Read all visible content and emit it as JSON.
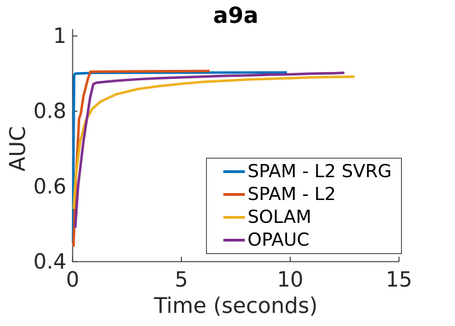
{
  "chart_data": {
    "type": "line",
    "title": "a9a",
    "xlabel": "Time (seconds)",
    "ylabel": "AUC",
    "xlim": [
      0,
      15
    ],
    "ylim": [
      0.4,
      1.0
    ],
    "x_ticks": [
      0,
      5,
      10,
      15
    ],
    "x_tick_labels": [
      "0",
      "5",
      "10",
      "15"
    ],
    "y_ticks": [
      1.0,
      0.8,
      0.6,
      0.4
    ],
    "y_tick_labels": [
      "1",
      "0.8",
      "0.6",
      "0.4"
    ],
    "grid": false,
    "legend_position": "inside-right-center",
    "axis_color": "#262626",
    "background_color": "#ffffff",
    "series": [
      {
        "name": "SPAM - L2 SVRG",
        "color": "#0072BD",
        "points": [
          [
            0.02,
            0.45
          ],
          [
            0.04,
            0.7
          ],
          [
            0.07,
            0.895
          ],
          [
            0.12,
            0.9
          ],
          [
            1.0,
            0.902
          ],
          [
            9.85,
            0.903
          ]
        ]
      },
      {
        "name": "SPAM - L2",
        "color": "#D95319",
        "points": [
          [
            0.04,
            0.44
          ],
          [
            0.15,
            0.62
          ],
          [
            0.3,
            0.78
          ],
          [
            0.38,
            0.795
          ],
          [
            0.5,
            0.84
          ],
          [
            0.7,
            0.885
          ],
          [
            0.82,
            0.905
          ],
          [
            3.0,
            0.906
          ],
          [
            6.3,
            0.907
          ]
        ]
      },
      {
        "name": "SOLAM",
        "color": "#EDB120",
        "points": [
          [
            0.05,
            0.54
          ],
          [
            0.15,
            0.63
          ],
          [
            0.35,
            0.72
          ],
          [
            0.6,
            0.775
          ],
          [
            0.9,
            0.806
          ],
          [
            1.3,
            0.826
          ],
          [
            2.0,
            0.845
          ],
          [
            3.0,
            0.859
          ],
          [
            4.0,
            0.867
          ],
          [
            5.0,
            0.873
          ],
          [
            6.0,
            0.878
          ],
          [
            7.0,
            0.881
          ],
          [
            8.0,
            0.884
          ],
          [
            9.0,
            0.886
          ],
          [
            10.0,
            0.888
          ],
          [
            11.0,
            0.89
          ],
          [
            12.0,
            0.891
          ],
          [
            12.96,
            0.892
          ]
        ]
      },
      {
        "name": "OPAUC",
        "color": "#7E2F8E",
        "points": [
          [
            0.12,
            0.49
          ],
          [
            0.25,
            0.6
          ],
          [
            0.5,
            0.72
          ],
          [
            0.8,
            0.835
          ],
          [
            0.95,
            0.872
          ],
          [
            1.1,
            0.876
          ],
          [
            2.0,
            0.881
          ],
          [
            3.0,
            0.885
          ],
          [
            4.0,
            0.888
          ],
          [
            5.0,
            0.89
          ],
          [
            6.0,
            0.892
          ],
          [
            7.0,
            0.894
          ],
          [
            8.0,
            0.895
          ],
          [
            9.0,
            0.897
          ],
          [
            10.0,
            0.898
          ],
          [
            11.0,
            0.9
          ],
          [
            12.0,
            0.901
          ],
          [
            12.49,
            0.902
          ]
        ]
      }
    ]
  }
}
